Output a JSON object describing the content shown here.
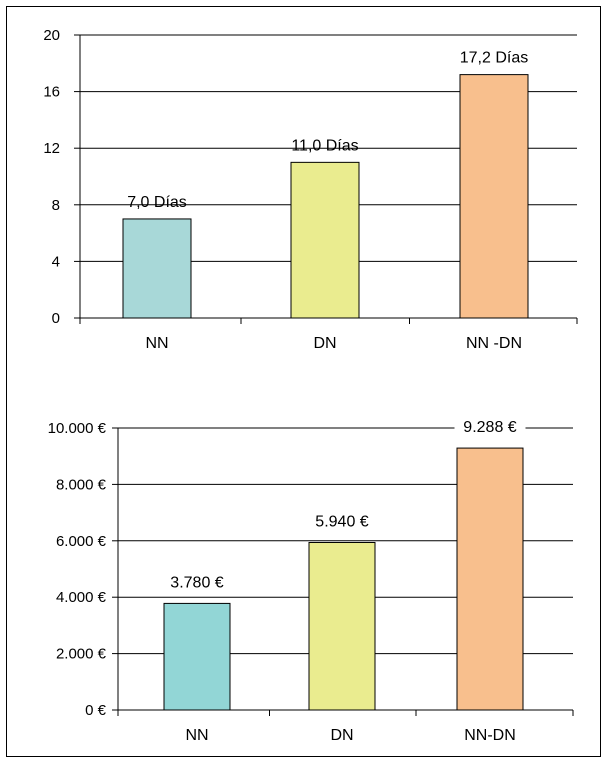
{
  "chart_data": [
    {
      "type": "bar",
      "categories": [
        "NN",
        "DN",
        "NN -DN"
      ],
      "values": [
        7.0,
        11.0,
        17.2
      ],
      "data_labels": [
        "7,0 Días",
        "11,0 Días",
        "17,2 Días"
      ],
      "ylim": [
        0,
        20
      ],
      "yticks": [
        0,
        4,
        8,
        12,
        16,
        20
      ],
      "ytick_labels": [
        "0",
        "4",
        "8",
        "12",
        "16",
        "20"
      ],
      "colors": [
        "#a8d8d8",
        "#eaec8f",
        "#f8bf8d"
      ],
      "grid": true
    },
    {
      "type": "bar",
      "categories": [
        "NN",
        "DN",
        "NN-DN"
      ],
      "values": [
        3780,
        5940,
        9288
      ],
      "data_labels": [
        "3.780 €",
        "5.940 €",
        "9.288 €"
      ],
      "ylim": [
        0,
        10000
      ],
      "yticks": [
        0,
        2000,
        4000,
        6000,
        8000,
        10000
      ],
      "ytick_labels": [
        "0 €",
        "2.000 €",
        "4.000 €",
        "6.000 €",
        "8.000 €",
        "10.000 €"
      ],
      "colors": [
        "#92d6d6",
        "#eaec8f",
        "#f8bf8d"
      ],
      "grid": true
    }
  ]
}
